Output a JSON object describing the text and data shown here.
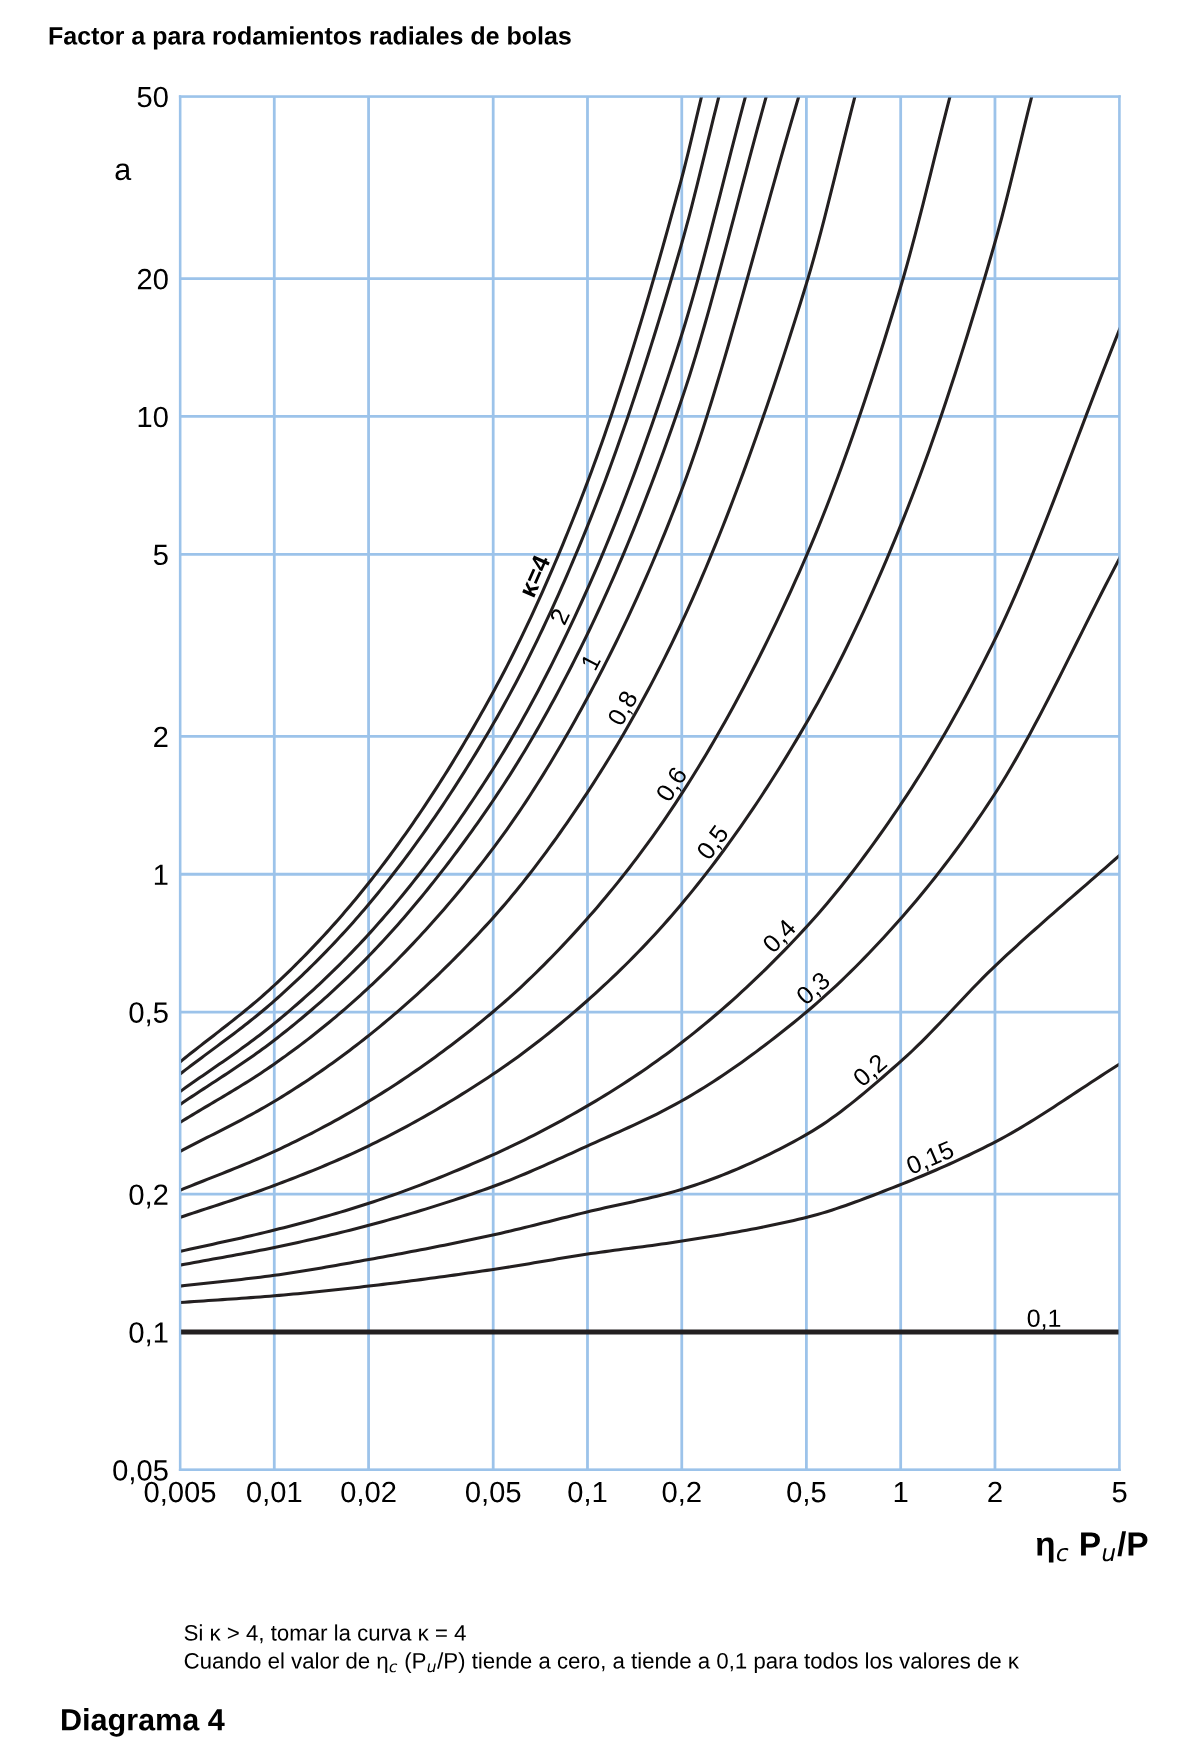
{
  "chart_data": {
    "type": "line",
    "title": "Factor a para rodamientos radiales de bolas",
    "ylabel": "a",
    "xlabel": "η$_{c}$ P$_{u}$/P",
    "log": "xy",
    "grid": true,
    "legend": false,
    "marker": "none",
    "line_style": "solid",
    "xlim": [
      0.005,
      5
    ],
    "ylim": [
      0.05,
      50
    ],
    "xticks": [
      {
        "value": 0.005,
        "label": "0,005"
      },
      {
        "value": 0.01,
        "label": "0,01"
      },
      {
        "value": 0.02,
        "label": "0,02"
      },
      {
        "value": 0.05,
        "label": "0,05"
      },
      {
        "value": 0.1,
        "label": "0,1"
      },
      {
        "value": 0.2,
        "label": "0,2"
      },
      {
        "value": 0.5,
        "label": "0,5"
      },
      1,
      2,
      5
    ],
    "yticks": [
      {
        "value": 0.05,
        "label": "0,05"
      },
      {
        "value": 0.1,
        "label": "0,1"
      },
      {
        "value": 0.2,
        "label": "0,2"
      },
      {
        "value": 0.5,
        "label": "0,5"
      },
      1,
      2,
      5,
      10,
      20,
      50
    ],
    "series": [
      {
        "name": "κ=4",
        "color": "#231f20",
        "x": [
          0.005,
          0.01,
          0.02,
          0.05,
          0.1,
          0.2,
          0.2313
        ],
        "values": [
          0.389,
          0.572,
          0.956,
          2.5,
          7.19,
          33.2,
          50
        ]
      },
      {
        "color": "#231f20",
        "x": [
          0.005,
          0.01,
          0.02,
          0.05,
          0.1,
          0.2,
          0.2627
        ],
        "values": [
          0.366,
          0.529,
          0.859,
          2.13,
          5.76,
          23.9,
          50
        ]
      },
      {
        "name": "2",
        "color": "#231f20",
        "x": [
          0.005,
          0.01,
          0.02,
          0.05,
          0.1,
          0.2,
          0.3195
        ],
        "values": [
          0.335,
          0.472,
          0.739,
          1.7,
          4.2,
          15.1,
          50
        ]
      },
      {
        "color": "#231f20",
        "x": [
          0.005,
          0.01,
          0.02,
          0.05,
          0.1,
          0.2,
          0.3722
        ],
        "values": [
          0.314,
          0.434,
          0.662,
          1.45,
          3.35,
          10.9,
          50
        ]
      },
      {
        "name": "1",
        "color": "#231f20",
        "x": [
          0.005,
          0.01,
          0.02,
          0.05,
          0.1,
          0.2,
          0.4727
        ],
        "values": [
          0.287,
          0.385,
          0.565,
          1.14,
          2.43,
          6.92,
          50
        ]
      },
      {
        "name": "0,8",
        "color": "#231f20",
        "x": [
          0.005,
          0.01,
          0.02,
          0.05,
          0.1,
          0.2,
          0.5,
          0.7145
        ],
        "values": [
          0.248,
          0.319,
          0.444,
          0.804,
          1.51,
          3.55,
          19.5,
          50
        ]
      },
      {
        "name": "0,6",
        "color": "#231f20",
        "x": [
          0.005,
          0.01,
          0.02,
          0.05,
          0.1,
          0.2,
          0.5,
          1,
          1.437
        ],
        "values": [
          0.204,
          0.248,
          0.319,
          0.501,
          0.801,
          1.5,
          4.96,
          19.2,
          50
        ]
      },
      {
        "name": "0,5",
        "color": "#231f20",
        "x": [
          0.005,
          0.01,
          0.02,
          0.05,
          0.1,
          0.2,
          0.5,
          1,
          2,
          2.621
        ],
        "values": [
          0.178,
          0.209,
          0.255,
          0.366,
          0.53,
          0.862,
          2.14,
          5.78,
          24.0,
          50
        ]
      },
      {
        "name": "0,4",
        "color": "#231f20",
        "x": [
          0.005,
          0.01,
          0.02,
          0.05,
          0.1,
          0.2,
          0.5,
          1,
          2,
          5
        ],
        "values": [
          0.15,
          0.167,
          0.191,
          0.244,
          0.312,
          0.429,
          0.767,
          1.42,
          3.26,
          15.5
        ]
      },
      {
        "name": "0,3",
        "color": "#231f20",
        "x": [
          0.005,
          0.01,
          0.02,
          0.05,
          0.1,
          0.2,
          0.5,
          1,
          2,
          5
        ],
        "values": [
          0.14,
          0.153,
          0.171,
          0.208,
          0.255,
          0.32,
          0.5,
          0.8,
          1.5,
          4.9
        ]
      },
      {
        "name": "0,2",
        "color": "#231f20",
        "x": [
          0.005,
          0.01,
          0.02,
          0.05,
          0.1,
          0.2,
          0.5,
          1,
          2,
          5
        ],
        "values": [
          0.126,
          0.133,
          0.144,
          0.163,
          0.183,
          0.205,
          0.27,
          0.39,
          0.63,
          1.1
        ]
      },
      {
        "name": "0,15",
        "color": "#231f20",
        "x": [
          0.005,
          0.01,
          0.02,
          0.05,
          0.1,
          0.2,
          0.5,
          1,
          2,
          5
        ],
        "values": [
          0.116,
          0.12,
          0.126,
          0.137,
          0.148,
          0.158,
          0.178,
          0.21,
          0.26,
          0.385
        ]
      },
      {
        "name": "0,1",
        "color": "#231f20",
        "x": [
          0.005,
          5
        ],
        "values": [
          0.1,
          0.1
        ]
      }
    ],
    "annotations": [
      "Si κ > 4, tomar la curva κ = 4",
      "Cuando el valor de η$_{c}$ (P$_{u}$/P) tiende a cero, a tiende a 0,1 para todos los valores de κ",
      "Diagrama 4"
    ]
  }
}
